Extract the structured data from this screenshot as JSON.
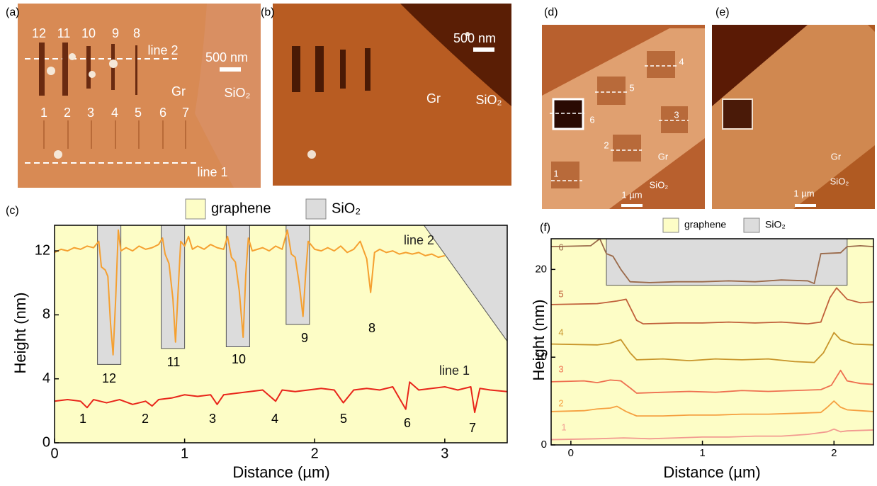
{
  "panels": [
    {
      "label": "(a)",
      "texts": [
        "12",
        "11",
        "10",
        "9",
        "8",
        "line 2",
        "500 nm",
        "Gr",
        "SiO₂",
        "1",
        "2",
        "3",
        "4",
        "5",
        "6",
        "7",
        "line 1"
      ]
    },
    {
      "label": "(b)",
      "texts": [
        "500 nm",
        "Gr",
        "SiO₂"
      ]
    },
    {
      "label": "(d)",
      "texts": [
        "4",
        "5",
        "6",
        "3",
        "2",
        "Gr",
        "1",
        "SiO₂",
        "1 µm"
      ]
    },
    {
      "label": "(e)",
      "texts": [
        "Gr",
        "SiO₂",
        "1 µm"
      ]
    }
  ],
  "chart_data": [
    {
      "type": "line",
      "label": "(c)",
      "xlabel": "Distance (µm)",
      "ylabel": "Height (nm)",
      "xlim": [
        0,
        3.48
      ],
      "ylim": [
        0,
        13.6
      ],
      "xticks": [
        0,
        1,
        2,
        3
      ],
      "yticks": [
        0,
        4,
        8,
        12
      ],
      "plot_background": "#fdfdc6",
      "legend": [
        {
          "name": "graphene",
          "color": "#fdfdc6"
        },
        {
          "name": "SiO₂",
          "color": "#dcdcdc"
        }
      ],
      "regions": [
        {
          "color": "#dcdcdc",
          "x": [
            0.33,
            0.51,
            0.51,
            0.33
          ],
          "y": [
            4.9,
            4.9,
            13.6,
            13.6
          ]
        },
        {
          "color": "#dcdcdc",
          "x": [
            0.82,
            1.0,
            1.0,
            0.82
          ],
          "y": [
            5.9,
            5.9,
            13.6,
            13.6
          ]
        },
        {
          "color": "#dcdcdc",
          "x": [
            1.32,
            1.5,
            1.5,
            1.32
          ],
          "y": [
            6.0,
            6.0,
            13.6,
            13.6
          ]
        },
        {
          "color": "#dcdcdc",
          "x": [
            1.78,
            1.96,
            1.96,
            1.78
          ],
          "y": [
            7.4,
            7.4,
            13.6,
            13.6
          ]
        },
        {
          "color": "#dcdcdc",
          "x": [
            2.84,
            3.48,
            3.48
          ],
          "y": [
            13.6,
            13.6,
            6.35
          ]
        }
      ],
      "series": [
        {
          "name": "line 2",
          "color": "#f5a030",
          "x": [
            0,
            0.05,
            0.1,
            0.15,
            0.2,
            0.25,
            0.3,
            0.34,
            0.36,
            0.39,
            0.41,
            0.43,
            0.45,
            0.47,
            0.49,
            0.51,
            0.55,
            0.6,
            0.65,
            0.7,
            0.75,
            0.8,
            0.83,
            0.85,
            0.88,
            0.91,
            0.93,
            0.95,
            0.97,
            1.0,
            1.03,
            1.06,
            1.1,
            1.15,
            1.2,
            1.25,
            1.3,
            1.33,
            1.36,
            1.39,
            1.42,
            1.45,
            1.47,
            1.49,
            1.52,
            1.56,
            1.6,
            1.65,
            1.7,
            1.75,
            1.79,
            1.82,
            1.85,
            1.88,
            1.91,
            1.93,
            1.95,
            2.0,
            2.05,
            2.1,
            2.15,
            2.2,
            2.25,
            2.3,
            2.35,
            2.4,
            2.43,
            2.46,
            2.5,
            2.55,
            2.6,
            2.65,
            2.7,
            2.75,
            2.8,
            2.85,
            2.9,
            2.95,
            3.0
          ],
          "values": [
            11.9,
            12.1,
            12.0,
            12.2,
            12.1,
            12.3,
            12.2,
            12.6,
            11.0,
            10.8,
            10.4,
            7.5,
            5.5,
            9.0,
            13.3,
            12.0,
            12.2,
            12.0,
            12.3,
            12.1,
            12.2,
            12.4,
            12.8,
            11.8,
            11.2,
            9.0,
            6.3,
            9.5,
            12.6,
            12.3,
            12.9,
            12.1,
            12.3,
            12.1,
            12.4,
            12.2,
            12.1,
            12.9,
            11.6,
            11.3,
            9.5,
            6.6,
            10.5,
            12.8,
            12.0,
            12.1,
            12.2,
            12.0,
            12.3,
            12.1,
            13.3,
            11.8,
            11.6,
            10.0,
            7.9,
            10.5,
            12.6,
            12.1,
            12.0,
            12.2,
            12.0,
            12.3,
            11.9,
            12.1,
            12.6,
            11.5,
            9.4,
            11.9,
            12.1,
            11.9,
            12.0,
            11.8,
            11.9,
            11.8,
            11.9,
            11.7,
            11.8,
            11.6,
            11.7
          ]
        },
        {
          "name": "line 1",
          "color": "#e8251a",
          "x": [
            0,
            0.1,
            0.2,
            0.25,
            0.3,
            0.4,
            0.5,
            0.6,
            0.7,
            0.75,
            0.8,
            0.9,
            1.0,
            1.1,
            1.2,
            1.25,
            1.3,
            1.4,
            1.5,
            1.6,
            1.7,
            1.75,
            1.85,
            1.95,
            2.05,
            2.15,
            2.22,
            2.3,
            2.4,
            2.5,
            2.6,
            2.7,
            2.73,
            2.8,
            2.9,
            3.0,
            3.1,
            3.2,
            3.23,
            3.27,
            3.35,
            3.48
          ],
          "values": [
            2.6,
            2.7,
            2.6,
            2.2,
            2.7,
            2.5,
            2.7,
            2.4,
            2.6,
            2.3,
            2.7,
            2.8,
            3.0,
            2.9,
            3.0,
            2.4,
            3.0,
            3.1,
            3.2,
            3.3,
            2.6,
            3.3,
            3.2,
            3.3,
            3.4,
            3.3,
            2.5,
            3.3,
            3.4,
            3.3,
            3.5,
            2.1,
            3.8,
            3.3,
            3.4,
            3.5,
            3.3,
            3.5,
            1.9,
            3.4,
            3.3,
            3.2
          ]
        }
      ],
      "annotations": [
        "12",
        "11",
        "10",
        "9",
        "8",
        "1",
        "2",
        "3",
        "4",
        "5",
        "6",
        "7"
      ]
    },
    {
      "type": "line",
      "label": "(f)",
      "xlabel": "Distance (µm)",
      "ylabel": "Height (nm)",
      "xlim": [
        -0.15,
        2.3
      ],
      "ylim": [
        0,
        23.5
      ],
      "xticks": [
        0,
        1,
        2
      ],
      "yticks": [
        0,
        10,
        20
      ],
      "plot_background": "#fdfdc6",
      "legend": [
        {
          "name": "graphene",
          "color": "#fdfdc6"
        },
        {
          "name": "SiO₂",
          "color": "#dcdcdc"
        }
      ],
      "regions": [
        {
          "color": "#dcdcdc",
          "x": [
            0.27,
            2.1,
            2.1,
            0.27
          ],
          "y": [
            18.2,
            18.2,
            23.5,
            23.5
          ]
        }
      ],
      "series": [
        {
          "name": "1",
          "color": "#f29a90",
          "x": [
            -0.15,
            0.2,
            0.4,
            0.6,
            0.8,
            1.0,
            1.2,
            1.4,
            1.6,
            1.8,
            1.95,
            2.0,
            2.05,
            2.1,
            2.3
          ],
          "values": [
            0.6,
            0.7,
            0.8,
            0.7,
            0.8,
            0.9,
            0.9,
            1.0,
            1.0,
            1.2,
            1.5,
            1.8,
            1.5,
            1.6,
            1.7
          ]
        },
        {
          "name": "2",
          "color": "#f5a040",
          "x": [
            -0.15,
            0.1,
            0.2,
            0.3,
            0.35,
            0.42,
            0.5,
            0.7,
            0.9,
            1.1,
            1.3,
            1.5,
            1.7,
            1.9,
            1.95,
            2.0,
            2.05,
            2.1,
            2.2,
            2.3
          ],
          "values": [
            3.8,
            3.9,
            4.1,
            4.2,
            4.4,
            3.8,
            3.3,
            3.3,
            3.4,
            3.4,
            3.5,
            3.5,
            3.6,
            3.7,
            4.3,
            5.0,
            4.3,
            4.0,
            3.9,
            3.8
          ]
        },
        {
          "name": "3",
          "color": "#ee7050",
          "x": [
            -0.15,
            0.1,
            0.2,
            0.3,
            0.38,
            0.45,
            0.5,
            0.7,
            0.9,
            1.1,
            1.3,
            1.5,
            1.7,
            1.9,
            1.98,
            2.05,
            2.1,
            2.2,
            2.3
          ],
          "values": [
            7.2,
            7.3,
            7.1,
            7.4,
            7.3,
            6.5,
            5.9,
            6.0,
            6.1,
            6.0,
            6.2,
            6.1,
            6.2,
            6.3,
            6.8,
            8.5,
            7.3,
            7.0,
            6.9
          ]
        },
        {
          "name": "4",
          "color": "#c8952a",
          "x": [
            -0.15,
            0.2,
            0.3,
            0.38,
            0.45,
            0.5,
            0.7,
            0.9,
            1.1,
            1.3,
            1.5,
            1.7,
            1.85,
            1.92,
            2.0,
            2.05,
            2.15,
            2.3
          ],
          "values": [
            11.5,
            11.4,
            11.6,
            12.0,
            10.5,
            9.7,
            9.8,
            9.6,
            9.8,
            9.7,
            9.8,
            9.5,
            9.4,
            10.5,
            12.8,
            12.0,
            11.5,
            11.4
          ]
        },
        {
          "name": "5",
          "color": "#c0603a",
          "x": [
            -0.15,
            0.2,
            0.35,
            0.42,
            0.5,
            0.55,
            0.8,
            1.0,
            1.2,
            1.4,
            1.6,
            1.8,
            1.9,
            1.97,
            2.02,
            2.1,
            2.2,
            2.3
          ],
          "values": [
            16.0,
            16.1,
            16.4,
            16.6,
            14.2,
            13.8,
            13.9,
            13.9,
            14.0,
            13.9,
            14.0,
            13.8,
            14.0,
            16.8,
            17.9,
            16.6,
            16.2,
            16.3
          ]
        },
        {
          "name": "6",
          "color": "#9a6a4a",
          "x": [
            -0.15,
            0.15,
            0.22,
            0.27,
            0.32,
            0.38,
            0.45,
            0.6,
            0.8,
            1.0,
            1.2,
            1.4,
            1.6,
            1.8,
            1.85,
            1.9,
            2.05,
            2.1,
            2.2,
            2.3
          ],
          "values": [
            22.6,
            22.7,
            23.5,
            21.8,
            21.5,
            20.0,
            18.6,
            18.5,
            18.6,
            18.6,
            18.7,
            18.6,
            18.8,
            18.7,
            18.4,
            21.8,
            21.9,
            22.6,
            22.7,
            22.6
          ]
        }
      ]
    }
  ]
}
